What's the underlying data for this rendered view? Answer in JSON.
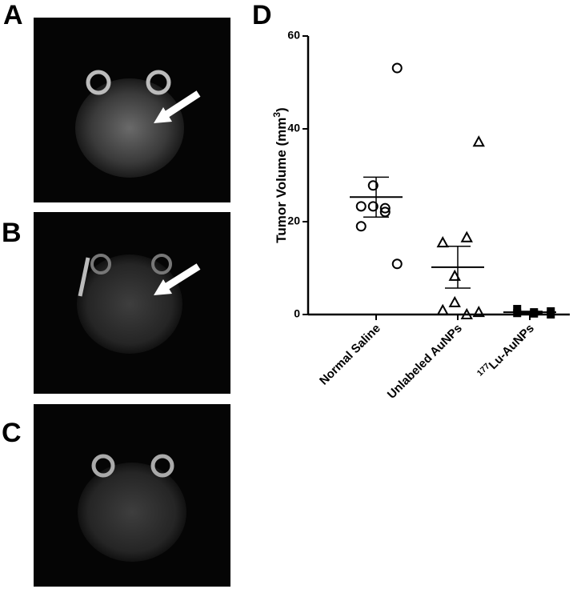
{
  "panels": [
    "A",
    "B",
    "C",
    "D"
  ],
  "chart_data": {
    "type": "dot",
    "ylabel": [
      {
        "text": "Tumor Volume  (mm"
      },
      {
        "text": "3",
        "sup": true
      },
      {
        "text": ")"
      }
    ],
    "categories": [
      [
        {
          "text": "Normal Saline"
        }
      ],
      [
        {
          "text": "Unlabeled AuNPs"
        }
      ],
      [
        {
          "text": "177",
          "sup": true
        },
        {
          "text": "Lu-AuNPs"
        }
      ]
    ],
    "ylim": [
      0,
      60
    ],
    "yticks": [
      0,
      20,
      40,
      60
    ],
    "color": "#000000",
    "groups": [
      {
        "marker": "circle",
        "values": [
          53.1,
          23.3,
          22.9,
          27.8,
          23.3,
          22.1,
          19.0,
          10.9
        ],
        "mean": 25.3,
        "sem": 4.3
      },
      {
        "marker": "triangle",
        "values": [
          37.2,
          15.5,
          16.6,
          8.3,
          2.6,
          0.0,
          0.9,
          0.5
        ],
        "mean": 10.2,
        "sem": 4.5
      },
      {
        "marker": "square",
        "values": [
          0.7,
          1.2,
          0.5,
          0.2,
          0.3,
          0.0
        ],
        "mean": 0.5,
        "sem": 0.2
      }
    ]
  }
}
